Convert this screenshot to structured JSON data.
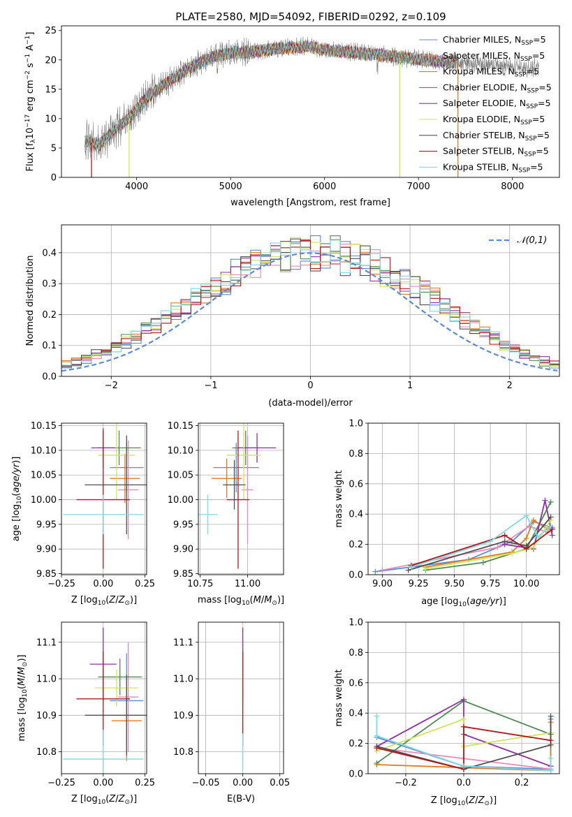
{
  "title": "PLATE=2580, MJD=54092, FIBERID=0292, z=0.109",
  "colors": {
    "chabrier_miles": "#5b8bd6",
    "salpeter_miles": "#e68ab8",
    "kroupa_miles": "#e07b1f",
    "chabrier_elodie": "#4e8a4e",
    "salpeter_elodie": "#8e2fa8",
    "kroupa_elodie": "#cde65a",
    "chabrier_stelib": "#505050",
    "salpeter_stelib": "#b01818",
    "kroupa_stelib": "#7fd8e2",
    "data": "#808080",
    "normal": "#5b8bd6",
    "grid": "#b0b0b0"
  },
  "chart_data": [
    {
      "type": "line",
      "panel": "spectrum",
      "xlabel": "wavelength [Angstrom, rest frame]",
      "ylabel": "Flux [f_λ 10^-17 erg cm^-2 s^-1 A^-1]",
      "xlim": [
        3200,
        8500
      ],
      "ylim": [
        0,
        25.8
      ],
      "xticks": [
        "4000",
        "5000",
        "6000",
        "7000",
        "8000"
      ],
      "yticks": [
        "0",
        "5",
        "10",
        "15",
        "20",
        "25"
      ],
      "grid": false,
      "legend": "top-right",
      "data_x_range": [
        3450,
        8280
      ],
      "series": [
        {
          "name": "Chabrier MILES, N_SSP=5"
        },
        {
          "name": "Salpeter MILES, N_SSP=5"
        },
        {
          "name": "Kroupa MILES, N_SSP=5"
        },
        {
          "name": "Chabrier ELODIE, N_SSP=5"
        },
        {
          "name": "Salpeter ELODIE, N_SSP=5"
        },
        {
          "name": "Kroupa ELODIE, N_SSP=5"
        },
        {
          "name": "Chabrier STELIB, N_SSP=5"
        },
        {
          "name": "Salpeter STELIB, N_SSP=5"
        },
        {
          "name": "Kroupa STELIB, N_SSP=5"
        }
      ],
      "continuum": {
        "x": [
          3450,
          3600,
          3800,
          3950,
          4100,
          4300,
          4500,
          4800,
          5000,
          5200,
          5500,
          5800,
          6000,
          6300,
          6600,
          6900,
          7200,
          7400,
          7700,
          8000,
          8280
        ],
        "y": [
          6.3,
          5.5,
          8.5,
          10.5,
          13.5,
          15.8,
          18,
          20.5,
          21.3,
          21.3,
          21.9,
          22.3,
          21.7,
          21.3,
          20.8,
          20.3,
          19.8,
          19.5,
          19.2,
          18.8,
          18.6
        ]
      },
      "model_envelope": {
        "x": [
          3450,
          3600,
          3800,
          3950,
          4100,
          4300,
          4500,
          4800,
          5000,
          5200,
          5500,
          5800,
          6000,
          6300,
          6600,
          6900,
          7200,
          7400
        ],
        "y": [
          6.3,
          5.5,
          8.5,
          10.5,
          13.5,
          15.8,
          18,
          20.5,
          21.3,
          21.3,
          21.9,
          22.3,
          21.7,
          21.3,
          20.8,
          20.3,
          19.8,
          19.5
        ]
      },
      "dropouts": [
        {
          "x": 3520,
          "series": "Salpeter STELIB, N_SSP=5"
        },
        {
          "x": 3920,
          "series": "Kroupa ELODIE, N_SSP=5"
        },
        {
          "x": 6800,
          "series": "Kroupa ELODIE, N_SSP=5"
        },
        {
          "x": 7420,
          "series": "Kroupa MILES, N_SSP=5"
        }
      ]
    },
    {
      "type": "step",
      "panel": "residual_histogram",
      "xlabel": "(data-model)/error",
      "ylabel": "Normed distribution",
      "xlim": [
        -2.5,
        2.5
      ],
      "ylim": [
        0,
        0.49
      ],
      "xticks": [
        "−2",
        "−1",
        "0",
        "1",
        "2"
      ],
      "yticks": [
        "0.0",
        "0.1",
        "0.2",
        "0.3",
        "0.4"
      ],
      "grid": true,
      "legend": "top-right",
      "legend_label": "𝒩(0,1)",
      "bin_width": 0.1,
      "base_counts": [
        0.02,
        0.022,
        0.026,
        0.032,
        0.039,
        0.048,
        0.058,
        0.07,
        0.083,
        0.097,
        0.113,
        0.13,
        0.148,
        0.168,
        0.188,
        0.208,
        0.228,
        0.25,
        0.271,
        0.292,
        0.312,
        0.33,
        0.347,
        0.362,
        0.375,
        0.385,
        0.393,
        0.398,
        0.4,
        0.4,
        0.398,
        0.395,
        0.388,
        0.38,
        0.369,
        0.356,
        0.341,
        0.325,
        0.307,
        0.288,
        0.267,
        0.246,
        0.225,
        0.203,
        0.182,
        0.16,
        0.14,
        0.121,
        0.103,
        0.087,
        0.073,
        0.06,
        0.049,
        0.04,
        0.033,
        0.027,
        0.022,
        0.018
      ]
    },
    {
      "type": "errorbar",
      "panel": "age_vs_Z",
      "xlabel": "Z [log10(Z/Z⊙)]",
      "ylabel": "age [log10(age/yr)]",
      "xlim": [
        -0.25,
        0.26
      ],
      "ylim": [
        9.848,
        10.155
      ],
      "xticks": [
        "−0.25",
        "0.00",
        "0.25"
      ],
      "yticks": [
        "9.85",
        "9.90",
        "9.95",
        "10.00",
        "10.05",
        "10.10",
        "10.15"
      ],
      "grid": true,
      "points": [
        {
          "series": "Chabrier MILES, N_SSP=5",
          "x": 0.14,
          "xerr": 0.1,
          "y": 10.065,
          "yerr": 0.05
        },
        {
          "series": "Salpeter MILES, N_SSP=5",
          "x": 0.15,
          "xerr": 0.06,
          "y": 10.02,
          "yerr": 0.1
        },
        {
          "series": "Kroupa MILES, N_SSP=5",
          "x": 0.13,
          "xerr": 0.09,
          "y": 10.043,
          "yerr": 0.05
        },
        {
          "series": "Chabrier ELODIE, N_SSP=5",
          "x": 0.095,
          "xerr": 0.13,
          "y": 10.105,
          "yerr": 0.035
        },
        {
          "series": "Salpeter ELODIE, N_SSP=5",
          "x": 0.0,
          "xerr": 0.07,
          "y": 10.105,
          "yerr": 0.04
        },
        {
          "series": "Kroupa ELODIE, N_SSP=5",
          "x": 0.08,
          "xerr": 0.11,
          "y": 10.09,
          "yerr": 0.09
        },
        {
          "series": "Chabrier STELIB, N_SSP=5",
          "x": 0.14,
          "xerr": 0.25,
          "y": 10.03,
          "yerr": 0.1
        },
        {
          "series": "Salpeter STELIB, N_SSP=5",
          "x": 0.0,
          "xerr": 0.16,
          "y": 10.0,
          "yerr": 0.14
        },
        {
          "series": "Kroupa STELIB, N_SSP=5",
          "x": 0.0,
          "xerr": 0.24,
          "y": 9.97,
          "yerr": 0.04
        }
      ]
    },
    {
      "type": "errorbar",
      "panel": "age_vs_mass",
      "xlabel": "mass [log10(M/M⊙)]",
      "ylabel": "",
      "xlim": [
        10.74,
        11.19
      ],
      "ylim": [
        9.848,
        10.155
      ],
      "xticks": [
        "10.75",
        "11.00"
      ],
      "yticks": [
        "9.85",
        "9.90",
        "9.95",
        "10.00",
        "10.05",
        "10.10",
        "10.15"
      ],
      "grid": true,
      "points": [
        {
          "series": "Chabrier MILES, N_SSP=5",
          "x": 10.94,
          "xerr": 0.12,
          "y": 10.065,
          "yerr": 0.05
        },
        {
          "series": "Salpeter MILES, N_SSP=5",
          "x": 11.0,
          "xerr": 0.03,
          "y": 10.02,
          "yerr": 0.11
        },
        {
          "series": "Kroupa MILES, N_SSP=5",
          "x": 10.89,
          "xerr": 0.08,
          "y": 10.043,
          "yerr": 0.04
        },
        {
          "series": "Chabrier ELODIE, N_SSP=5",
          "x": 10.99,
          "xerr": 0.07,
          "y": 10.105,
          "yerr": 0.035
        },
        {
          "series": "Salpeter ELODIE, N_SSP=5",
          "x": 11.05,
          "xerr": 0.1,
          "y": 10.105,
          "yerr": 0.03
        },
        {
          "series": "Kroupa ELODIE, N_SSP=5",
          "x": 10.98,
          "xerr": 0.09,
          "y": 10.09,
          "yerr": 0.09
        },
        {
          "series": "Chabrier STELIB, N_SSP=5",
          "x": 10.93,
          "xerr": 0.06,
          "y": 10.03,
          "yerr": 0.05
        },
        {
          "series": "Salpeter STELIB, N_SSP=5",
          "x": 10.95,
          "xerr": 0.06,
          "y": 10.0,
          "yerr": 0.14
        },
        {
          "series": "Kroupa STELIB, N_SSP=5",
          "x": 10.79,
          "xerr": 0.05,
          "y": 9.97,
          "yerr": 0.04
        }
      ]
    },
    {
      "type": "line",
      "panel": "weight_vs_age",
      "xlabel": "age [log10(age/yr)]",
      "ylabel": "mass weight",
      "xlim": [
        8.9,
        10.23
      ],
      "ylim": [
        0,
        1
      ],
      "xticks": [
        "9.00",
        "9.25",
        "9.50",
        "9.75",
        "10.00"
      ],
      "yticks": [
        "0.0",
        "0.2",
        "0.4",
        "0.6",
        "0.8",
        "1.0"
      ],
      "grid": true,
      "series": [
        {
          "name": "Chabrier MILES, N_SSP=5",
          "x": [
            8.95,
            9.6,
            9.9,
            10.05,
            10.18
          ],
          "y": [
            0.02,
            0.1,
            0.22,
            0.35,
            0.31
          ]
        },
        {
          "name": "Salpeter MILES, N_SSP=5",
          "x": [
            9.0,
            9.8,
            10.02,
            10.15
          ],
          "y": [
            0.03,
            0.18,
            0.32,
            0.28
          ]
        },
        {
          "name": "Kroupa MILES, N_SSP=5",
          "x": [
            9.3,
            9.9,
            10.0,
            10.05,
            10.15
          ],
          "y": [
            0.05,
            0.15,
            0.24,
            0.36,
            0.3
          ]
        },
        {
          "name": "Chabrier ELODIE, N_SSP=5",
          "x": [
            9.3,
            9.7,
            10.0,
            10.17
          ],
          "y": [
            0.03,
            0.08,
            0.17,
            0.48
          ]
        },
        {
          "name": "Salpeter ELODIE, N_SSP=5",
          "x": [
            9.85,
            10.05,
            10.13,
            10.18
          ],
          "y": [
            0.2,
            0.17,
            0.49,
            0.26
          ]
        },
        {
          "name": "Kroupa ELODIE, N_SSP=5",
          "x": [
            9.3,
            9.9,
            10.05,
            10.17
          ],
          "y": [
            0.04,
            0.14,
            0.18,
            0.36
          ]
        },
        {
          "name": "Chabrier STELIB, N_SSP=5",
          "x": [
            9.18,
            9.85,
            10.0,
            10.17
          ],
          "y": [
            0.03,
            0.22,
            0.19,
            0.38
          ]
        },
        {
          "name": "Salpeter STELIB, N_SSP=5",
          "x": [
            9.2,
            9.85,
            10.0,
            10.18
          ],
          "y": [
            0.06,
            0.26,
            0.17,
            0.3
          ]
        },
        {
          "name": "Kroupa STELIB, N_SSP=5",
          "x": [
            9.2,
            9.75,
            10.0,
            10.08,
            10.17
          ],
          "y": [
            0.05,
            0.22,
            0.39,
            0.25,
            0.32
          ]
        }
      ]
    },
    {
      "type": "errorbar",
      "panel": "mass_vs_Z",
      "xlabel": "Z [log10(Z/Z⊙)]",
      "ylabel": "mass [log10(M/M⊙)]",
      "xlim": [
        -0.25,
        0.26
      ],
      "ylim": [
        10.74,
        11.155
      ],
      "xticks": [
        "−0.25",
        "0.00",
        "0.25"
      ],
      "yticks": [
        "10.8",
        "10.9",
        "11.0",
        "11.1"
      ],
      "grid": true,
      "points": [
        {
          "series": "Chabrier MILES, N_SSP=5",
          "x": 0.14,
          "xerr": 0.1,
          "y": 10.94,
          "yerr": 0.13
        },
        {
          "series": "Salpeter MILES, N_SSP=5",
          "x": 0.15,
          "xerr": 0.06,
          "y": 10.95,
          "yerr": 0.15
        },
        {
          "series": "Kroupa MILES, N_SSP=5",
          "x": 0.14,
          "xerr": 0.09,
          "y": 10.885,
          "yerr": 0.11
        },
        {
          "series": "Chabrier ELODIE, N_SSP=5",
          "x": 0.1,
          "xerr": 0.13,
          "y": 11.005,
          "yerr": 0.05
        },
        {
          "series": "Salpeter ELODIE, N_SSP=5",
          "x": 0.0,
          "xerr": 0.08,
          "y": 11.04,
          "yerr": 0.1
        },
        {
          "series": "Kroupa ELODIE, N_SSP=5",
          "x": 0.08,
          "xerr": 0.13,
          "y": 10.975,
          "yerr": 0.05
        },
        {
          "series": "Chabrier STELIB, N_SSP=5",
          "x": 0.14,
          "xerr": 0.25,
          "y": 10.9,
          "yerr": 0.11
        },
        {
          "series": "Salpeter STELIB, N_SSP=5",
          "x": 0.0,
          "xerr": 0.16,
          "y": 10.945,
          "yerr": 0.13
        },
        {
          "series": "Kroupa STELIB, N_SSP=5",
          "x": 0.0,
          "xerr": 0.24,
          "y": 10.78,
          "yerr": 0.08
        }
      ]
    },
    {
      "type": "errorbar",
      "panel": "mass_vs_ebv",
      "xlabel": "E(B-V)",
      "ylabel": "",
      "xlim": [
        -0.06,
        0.055
      ],
      "ylim": [
        10.74,
        11.155
      ],
      "xticks": [
        "−0.05",
        "0.00",
        "0.05"
      ],
      "yticks": [
        "10.8",
        "10.9",
        "11.0",
        "11.1"
      ],
      "grid": true,
      "points": [
        {
          "series": "Salpeter ELODIE, N_SSP=5",
          "x": 0.0,
          "y": 11.04,
          "yerr": 0.1
        },
        {
          "series": "Kroupa ELODIE, N_SSP=5",
          "x": 0.0,
          "y": 10.975,
          "yerr": 0.05
        },
        {
          "series": "Salpeter STELIB, N_SSP=5",
          "x": 0.0,
          "y": 10.945,
          "yerr": 0.13
        },
        {
          "series": "Kroupa STELIB, N_SSP=5",
          "x": 0.0,
          "y": 10.8,
          "yerr": 0.05
        }
      ]
    },
    {
      "type": "line",
      "panel": "weight_vs_Z",
      "xlabel": "Z [log10(Z/Z⊙)]",
      "ylabel": "mass weight",
      "xlim": [
        -0.33,
        0.33
      ],
      "ylim": [
        0,
        1
      ],
      "xticks": [
        "−0.2",
        "0.0",
        "0.2"
      ],
      "yticks": [
        "0.0",
        "0.2",
        "0.4",
        "0.6",
        "0.8",
        "1.0"
      ],
      "grid": true,
      "series": [
        {
          "name": "Chabrier MILES, N_SSP=5",
          "x": [
            -0.3,
            0.0,
            0.3,
            0.3
          ],
          "y": [
            0.24,
            0.05,
            0.03,
            0.36
          ]
        },
        {
          "name": "Salpeter MILES, N_SSP=5",
          "x": [
            -0.3,
            0.3
          ],
          "y": [
            0.17,
            0.03
          ]
        },
        {
          "name": "Kroupa MILES, N_SSP=5",
          "x": [
            -0.3,
            0.0,
            0.3,
            0.3
          ],
          "y": [
            0.06,
            0.04,
            0.02,
            0.34
          ]
        },
        {
          "name": "Chabrier ELODIE, N_SSP=5",
          "x": [
            -0.3,
            0.0,
            0.3
          ],
          "y": [
            0.07,
            0.48,
            0.26
          ]
        },
        {
          "name": "Salpeter ELODIE, N_SSP=5",
          "x": [
            -0.3,
            0.0,
            0.0,
            0.3
          ],
          "y": [
            0.18,
            0.49,
            0.26,
            0.05
          ]
        },
        {
          "name": "Kroupa ELODIE, N_SSP=5",
          "x": [
            -0.3,
            0.0,
            0.0,
            0.3
          ],
          "y": [
            0.15,
            0.36,
            0.18,
            0.27
          ]
        },
        {
          "name": "Chabrier STELIB, N_SSP=5",
          "x": [
            -0.3,
            0.0,
            0.3,
            0.3
          ],
          "y": [
            0.18,
            0.03,
            0.19,
            0.38
          ]
        },
        {
          "name": "Salpeter STELIB, N_SSP=5",
          "x": [
            -0.3,
            0.0,
            0.0,
            0.3
          ],
          "y": [
            0.17,
            0.03,
            0.31,
            0.22
          ]
        },
        {
          "name": "Kroupa STELIB, N_SSP=5",
          "x": [
            -0.3,
            -0.3,
            0.0,
            0.3,
            0.3
          ],
          "y": [
            0.38,
            0.25,
            0.05,
            0.02,
            0.1
          ]
        }
      ]
    }
  ]
}
